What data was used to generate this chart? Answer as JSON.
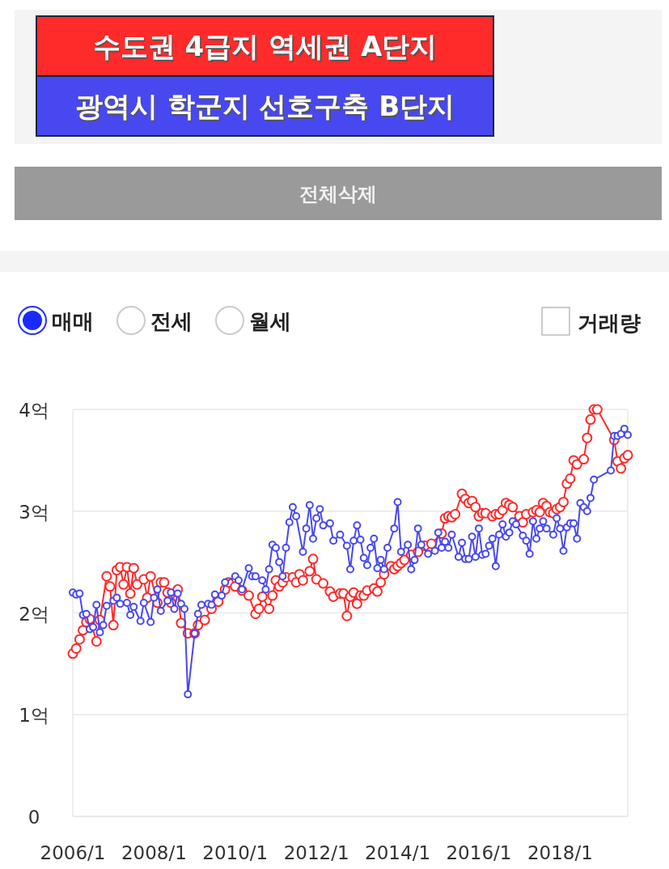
{
  "chart_data": {
    "type": "line",
    "grid": "y",
    "legend": "top",
    "marker": "circle",
    "line_style": "solid",
    "xlim": [
      "2006-01",
      "2019-09"
    ],
    "xticks": [
      {
        "value": "2006-01",
        "label": "2006/1"
      },
      {
        "value": "2008-01",
        "label": "2008/1"
      },
      {
        "value": "2010-01",
        "label": "2010/1"
      },
      {
        "value": "2012-01",
        "label": "2012/1"
      },
      {
        "value": "2014-01",
        "label": "2014/1"
      },
      {
        "value": "2016-01",
        "label": "2016/1"
      },
      {
        "value": "2018-01",
        "label": "2018/1"
      }
    ],
    "ylim": [
      0,
      4
    ],
    "yticks": [
      0,
      {
        "value": 1,
        "label": "1억"
      },
      {
        "value": 2,
        "label": "2억"
      },
      {
        "value": 3,
        "label": "3억"
      },
      {
        "value": 4,
        "label": "4억"
      }
    ],
    "annotations": [
      "전체삭제",
      "매매",
      "전세",
      "월세",
      "거래량"
    ],
    "series": [
      {
        "name": "수도권 4급지 역세권 A단지",
        "color": "#ff2a2a",
        "x": [
          "2006-01",
          "2006-02",
          "2006-03",
          "2006-04",
          "2006-05",
          "2006-06",
          "2006-08",
          "2006-09",
          "2006-11",
          "2006-12",
          "2007-01",
          "2007-02",
          "2007-03",
          "2007-04",
          "2007-05",
          "2007-06",
          "2007-07",
          "2007-08",
          "2007-10",
          "2007-11",
          "2007-12",
          "2008-02",
          "2008-03",
          "2008-04",
          "2008-05",
          "2008-06",
          "2008-08",
          "2008-09",
          "2008-11",
          "2009-01",
          "2009-02",
          "2009-04",
          "2009-06",
          "2009-08",
          "2009-10",
          "2009-11",
          "2010-01",
          "2010-03",
          "2010-05",
          "2010-07",
          "2010-08",
          "2010-09",
          "2010-11",
          "2010-12",
          "2011-01",
          "2011-02",
          "2011-03",
          "2011-04",
          "2011-06",
          "2011-07",
          "2011-08",
          "2011-09",
          "2011-11",
          "2011-12",
          "2012-01",
          "2012-03",
          "2012-05",
          "2012-06",
          "2012-08",
          "2012-09",
          "2012-10",
          "2012-11",
          "2012-12",
          "2013-01",
          "2013-02",
          "2013-03",
          "2013-04",
          "2013-06",
          "2013-07",
          "2013-08",
          "2013-09",
          "2013-11",
          "2013-12",
          "2014-01",
          "2014-02",
          "2014-03",
          "2014-05",
          "2014-07",
          "2014-09",
          "2014-11",
          "2015-02",
          "2015-03",
          "2015-04",
          "2015-05",
          "2015-06",
          "2015-08",
          "2015-09",
          "2015-10",
          "2015-11",
          "2015-12",
          "2016-01",
          "2016-02",
          "2016-03",
          "2016-05",
          "2016-06",
          "2016-07",
          "2016-08",
          "2016-09",
          "2016-10",
          "2016-11",
          "2017-01",
          "2017-02",
          "2017-03",
          "2017-05",
          "2017-06",
          "2017-07",
          "2017-08",
          "2017-09",
          "2017-10",
          "2017-11",
          "2017-12",
          "2018-01",
          "2018-02",
          "2018-03",
          "2018-04",
          "2018-05",
          "2018-06",
          "2018-08",
          "2018-09",
          "2018-10",
          "2018-11",
          "2018-12",
          "2019-05",
          "2019-06",
          "2019-07",
          "2019-08",
          "2019-09"
        ],
        "values": [
          1.6,
          1.65,
          1.74,
          1.83,
          1.91,
          1.94,
          1.72,
          1.93,
          2.36,
          2.26,
          1.88,
          2.42,
          2.45,
          2.28,
          2.45,
          2.19,
          2.44,
          2.28,
          2.33,
          2.15,
          2.36,
          2.1,
          2.3,
          2.3,
          2.2,
          2.1,
          2.23,
          1.9,
          1.8,
          1.8,
          1.88,
          1.93,
          2.04,
          2.11,
          2.23,
          2.3,
          2.26,
          2.22,
          2.17,
          1.99,
          2.04,
          2.16,
          2.04,
          2.17,
          2.32,
          2.26,
          2.3,
          2.35,
          2.35,
          2.3,
          2.38,
          2.32,
          2.41,
          2.53,
          2.33,
          2.29,
          2.21,
          2.16,
          2.19,
          2.19,
          1.97,
          2.16,
          2.2,
          2.09,
          2.17,
          2.17,
          2.22,
          2.24,
          2.21,
          2.3,
          2.38,
          2.46,
          2.43,
          2.46,
          2.49,
          2.52,
          2.57,
          2.6,
          2.66,
          2.68,
          2.78,
          2.93,
          2.95,
          2.94,
          2.97,
          3.17,
          3.12,
          3.08,
          3.1,
          3.04,
          2.95,
          2.98,
          2.98,
          2.95,
          2.97,
          2.97,
          3.01,
          3.08,
          3.06,
          3.04,
          2.95,
          2.89,
          2.97,
          2.99,
          3.01,
          2.99,
          3.08,
          3.05,
          2.99,
          2.98,
          3.02,
          3.04,
          3.09,
          3.27,
          3.32,
          3.5,
          3.46,
          3.51,
          3.72,
          3.9,
          4.0,
          4.0,
          3.7,
          3.49,
          3.42,
          3.52,
          3.55
        ]
      },
      {
        "name": "광역시 학군지 선호구축 B단지",
        "color": "#4848f0",
        "x": [
          "2006-01",
          "2006-02",
          "2006-03",
          "2006-04",
          "2006-05",
          "2006-06",
          "2006-07",
          "2006-08",
          "2006-09",
          "2006-10",
          "2006-11",
          "2007-01",
          "2007-02",
          "2007-03",
          "2007-05",
          "2007-06",
          "2007-07",
          "2007-09",
          "2007-10",
          "2007-12",
          "2008-01",
          "2008-02",
          "2008-03",
          "2008-05",
          "2008-06",
          "2008-07",
          "2008-08",
          "2008-09",
          "2008-10",
          "2008-11",
          "2009-01",
          "2009-02",
          "2009-03",
          "2009-05",
          "2009-06",
          "2009-07",
          "2009-09",
          "2009-10",
          "2010-01",
          "2010-02",
          "2010-03",
          "2010-05",
          "2010-06",
          "2010-07",
          "2010-09",
          "2010-10",
          "2010-11",
          "2010-12",
          "2011-01",
          "2011-02",
          "2011-03",
          "2011-04",
          "2011-05",
          "2011-06",
          "2011-07",
          "2011-09",
          "2011-10",
          "2011-11",
          "2011-12",
          "2012-01",
          "2012-02",
          "2012-03",
          "2012-05",
          "2012-06",
          "2012-08",
          "2012-10",
          "2012-11",
          "2012-12",
          "2013-01",
          "2013-02",
          "2013-03",
          "2013-04",
          "2013-05",
          "2013-06",
          "2013-07",
          "2013-08",
          "2013-09",
          "2013-10",
          "2013-12",
          "2014-01",
          "2014-02",
          "2014-04",
          "2014-05",
          "2014-06",
          "2014-07",
          "2014-08",
          "2014-10",
          "2014-12",
          "2015-01",
          "2015-02",
          "2015-03",
          "2015-04",
          "2015-05",
          "2015-07",
          "2015-08",
          "2015-09",
          "2015-10",
          "2015-11",
          "2015-12",
          "2016-01",
          "2016-02",
          "2016-03",
          "2016-04",
          "2016-05",
          "2016-06",
          "2016-07",
          "2016-08",
          "2016-09",
          "2016-10",
          "2016-11",
          "2016-12",
          "2017-02",
          "2017-03",
          "2017-04",
          "2017-05",
          "2017-06",
          "2017-07",
          "2017-08",
          "2017-09",
          "2017-11",
          "2017-12",
          "2018-01",
          "2018-02",
          "2018-03",
          "2018-04",
          "2018-05",
          "2018-06",
          "2018-07",
          "2018-08",
          "2018-09",
          "2018-10",
          "2018-11",
          "2019-04",
          "2019-05",
          "2019-06",
          "2019-07",
          "2019-08",
          "2019-09"
        ],
        "values": [
          2.2,
          2.18,
          2.19,
          1.98,
          1.99,
          1.84,
          1.86,
          2.08,
          1.81,
          1.88,
          2.07,
          2.12,
          2.15,
          2.09,
          2.1,
          1.98,
          2.06,
          1.92,
          2.1,
          1.91,
          2.15,
          2.23,
          2.02,
          2.12,
          2.2,
          2.04,
          2.19,
          2.09,
          2.04,
          1.2,
          1.8,
          1.99,
          2.08,
          2.09,
          2.08,
          2.18,
          2.17,
          2.3,
          2.36,
          2.32,
          2.23,
          2.44,
          2.36,
          2.36,
          2.32,
          2.23,
          2.43,
          2.67,
          2.64,
          2.5,
          2.36,
          2.64,
          2.89,
          3.04,
          2.95,
          2.6,
          2.83,
          3.06,
          2.73,
          2.93,
          3.02,
          2.86,
          2.88,
          2.71,
          2.77,
          2.66,
          2.43,
          2.71,
          2.86,
          2.72,
          2.54,
          2.47,
          2.64,
          2.73,
          2.44,
          2.52,
          2.43,
          2.64,
          2.83,
          3.09,
          2.6,
          2.67,
          2.43,
          2.52,
          2.83,
          2.67,
          2.58,
          2.61,
          2.79,
          2.64,
          2.7,
          2.64,
          2.77,
          2.55,
          2.69,
          2.53,
          2.53,
          2.75,
          2.55,
          2.83,
          2.57,
          2.58,
          2.66,
          2.73,
          2.46,
          2.77,
          2.87,
          2.75,
          2.79,
          2.9,
          2.87,
          2.76,
          2.71,
          2.58,
          2.9,
          2.73,
          2.83,
          2.9,
          2.83,
          2.77,
          2.93,
          2.83,
          2.61,
          2.84,
          2.88,
          2.88,
          2.73,
          3.08,
          3.04,
          3.0,
          3.13,
          3.31,
          3.4,
          3.74,
          3.74,
          3.76,
          3.81,
          3.75
        ]
      }
    ]
  }
}
